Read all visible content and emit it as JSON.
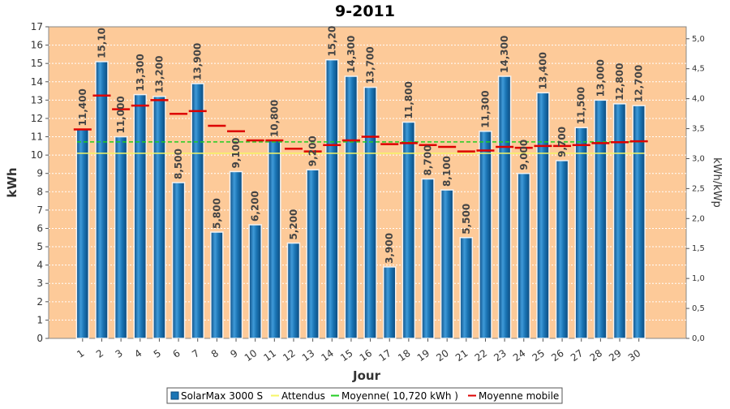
{
  "chart_data": {
    "type": "bar",
    "title": "9-2011",
    "xlabel": "Jour",
    "ylabel": "kWh",
    "y2label": "kWh/kWp",
    "ylim": [
      0,
      17
    ],
    "y2lim": [
      0,
      5.2
    ],
    "y2ticks": [
      "0,0",
      "0,5",
      "1,0",
      "1,5",
      "2,0",
      "2,5",
      "3,0",
      "3,5",
      "4,0",
      "4,5",
      "5,0"
    ],
    "categories": [
      "1",
      "2",
      "3",
      "4",
      "5",
      "6",
      "7",
      "8",
      "9",
      "10",
      "11",
      "12",
      "13",
      "14",
      "15",
      "16",
      "17",
      "18",
      "19",
      "20",
      "21",
      "22",
      "23",
      "24",
      "25",
      "26",
      "27",
      "28",
      "29",
      "30"
    ],
    "series": [
      {
        "name": "SolarMax 3000 S",
        "values": [
          11.4,
          15.1,
          11.0,
          13.3,
          13.2,
          8.5,
          13.9,
          5.8,
          9.1,
          6.2,
          10.8,
          5.2,
          9.2,
          15.2,
          14.3,
          13.7,
          3.9,
          11.8,
          8.7,
          8.1,
          5.5,
          11.3,
          14.3,
          9.0,
          13.4,
          9.7,
          11.5,
          13.0,
          12.8,
          12.7
        ],
        "labels": [
          "11,400",
          "15,10",
          "11,000",
          "13,300",
          "13,200",
          "8,500",
          "13,900",
          "5,800",
          "9,100",
          "6,200",
          "10,800",
          "5,200",
          "9,200",
          "15,20",
          "14,300",
          "13,700",
          "3,900",
          "11,800",
          "8,700",
          "8,100",
          "5,500",
          "11,300",
          "14,300",
          "9,000",
          "13,400",
          "9,700",
          "11,500",
          "13,000",
          "12,800",
          "12,700"
        ]
      },
      {
        "name": "Attendus",
        "value": 10.1
      },
      {
        "name": "Moyenne( 10,720 kWh )",
        "value": 10.72
      },
      {
        "name": "Moyenne mobile",
        "values": [
          11.4,
          13.25,
          12.5,
          12.7,
          13.0,
          12.25,
          12.4,
          11.6,
          11.3,
          10.8,
          10.8,
          10.35,
          10.2,
          10.55,
          10.8,
          11.0,
          10.6,
          10.65,
          10.55,
          10.45,
          10.2,
          10.25,
          10.45,
          10.4,
          10.5,
          10.5,
          10.55,
          10.65,
          10.7,
          10.75
        ]
      }
    ],
    "grid": true,
    "legend_position": "bottom",
    "colors": {
      "plot_bg": "#fdca99",
      "bar": "#1b75b5",
      "bar_light": "#5fb0e6",
      "expected": "#f6f666",
      "average": "#22cc22",
      "moving_avg": "#dd0000",
      "grid": "#ffffff"
    }
  }
}
